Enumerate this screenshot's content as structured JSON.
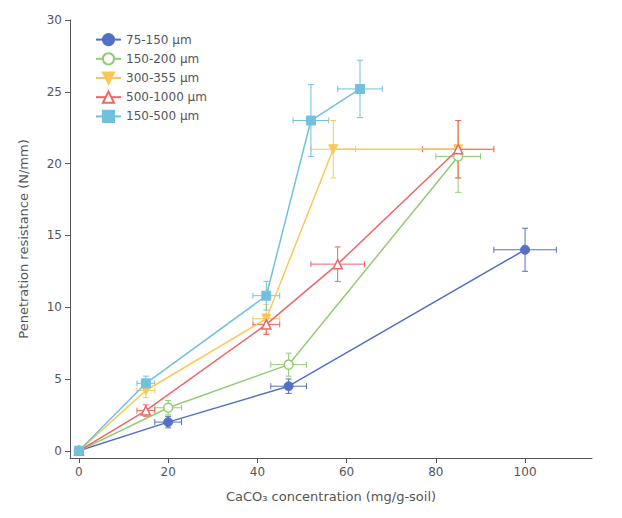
{
  "chart_data": {
    "type": "line",
    "xlabel": "CaCO₃ concentration (mg/g-soil)",
    "ylabel": "Penetration resistance (N/mm)",
    "xlim": [
      -2,
      115
    ],
    "ylim": [
      -0.5,
      30
    ],
    "xticks": [
      0,
      20,
      40,
      60,
      80,
      100
    ],
    "yticks": [
      0,
      5,
      10,
      15,
      20,
      25,
      30
    ],
    "grid": false,
    "legend": "upper left",
    "series": [
      {
        "name": "75-150 μm",
        "marker": "circle",
        "x": [
          0,
          20,
          47,
          100
        ],
        "values": [
          0,
          2.0,
          4.5,
          14.0
        ],
        "xerr": [
          0,
          3,
          4,
          7
        ],
        "yerr": [
          0,
          0.4,
          0.5,
          1.5
        ]
      },
      {
        "name": "150-200 μm",
        "marker": "circle-open",
        "x": [
          0,
          20,
          47,
          85
        ],
        "values": [
          0,
          3.0,
          6.0,
          20.5
        ],
        "xerr": [
          0,
          3,
          4,
          5
        ],
        "yerr": [
          0,
          0.5,
          0.8,
          2.5
        ]
      },
      {
        "name": "300-355 μm",
        "marker": "triangle-down",
        "x": [
          0,
          15,
          42,
          57,
          85
        ],
        "values": [
          0,
          4.2,
          9.2,
          21.0,
          21.0
        ],
        "xerr": [
          0,
          2,
          3,
          5,
          8
        ],
        "yerr": [
          0,
          0.5,
          1.0,
          2.0,
          2.0
        ]
      },
      {
        "name": "500-1000 μm",
        "marker": "triangle-up-open",
        "x": [
          0,
          15,
          42,
          58,
          85
        ],
        "values": [
          0,
          2.8,
          8.8,
          13.0,
          21.0
        ],
        "xerr": [
          0,
          2,
          3,
          6,
          8
        ],
        "yerr": [
          0,
          0.4,
          0.7,
          1.2,
          2.0
        ]
      },
      {
        "name": "150-500 μm",
        "marker": "square",
        "x": [
          0,
          15,
          42,
          52,
          63
        ],
        "values": [
          0,
          4.7,
          10.8,
          23.0,
          25.2
        ],
        "xerr": [
          0,
          2,
          3,
          4,
          5
        ],
        "yerr": [
          0,
          0.5,
          1.0,
          2.5,
          2.0
        ]
      }
    ]
  }
}
